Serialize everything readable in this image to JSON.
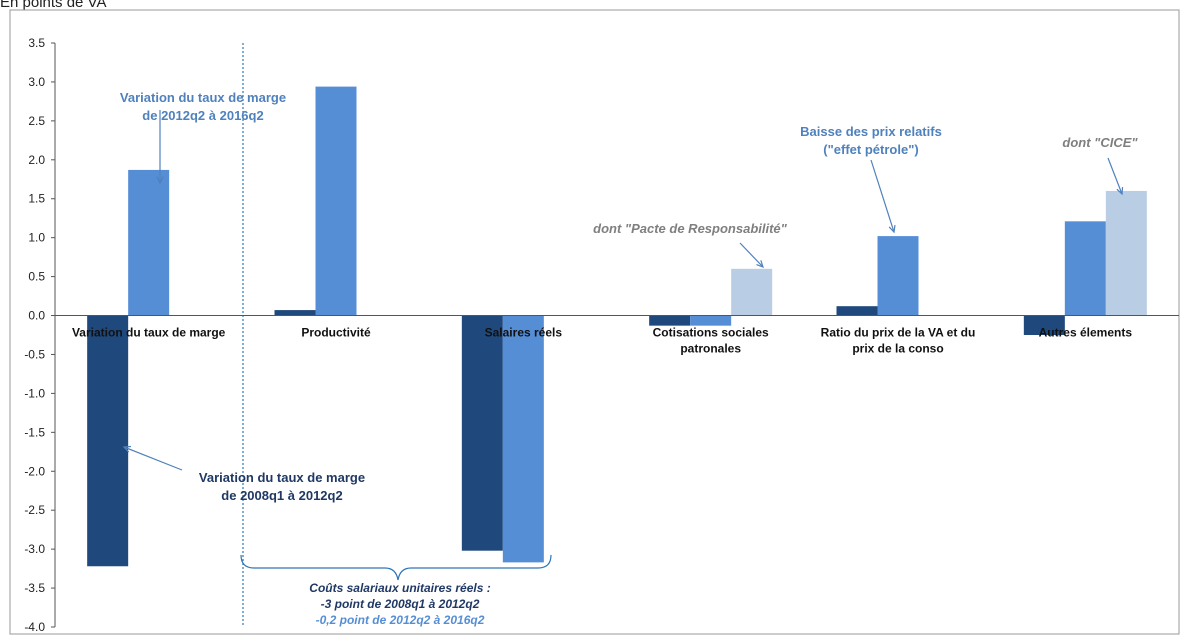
{
  "page_title": "En points de VA",
  "chart_data": {
    "type": "bar",
    "title": "",
    "unit_label": "En points de VA",
    "xlabel": "",
    "ylabel": "",
    "ylim": [
      -4.0,
      3.5
    ],
    "y_ticks": [
      "3.5",
      "3.0",
      "2.5",
      "2.0",
      "1.5",
      "1.0",
      "0.5",
      "0.0",
      "-0.5",
      "-1.0",
      "-1.5",
      "-2.0",
      "-2.5",
      "-3.0",
      "-3.5",
      "-4.0"
    ],
    "grid": false,
    "legend": "none",
    "categories": [
      [
        "Variation du taux de marge"
      ],
      [
        "Productivité"
      ],
      [
        "Salaires réels"
      ],
      [
        "Cotisations sociales",
        "patronales"
      ],
      [
        "Ratio du prix de la VA et du",
        "prix de la conso"
      ],
      [
        "Autres élements"
      ]
    ],
    "series": [
      {
        "color": "#1f497d",
        "values": [
          -3.22,
          0.07,
          -3.02,
          -0.13,
          0.12,
          -0.25
        ]
      },
      {
        "color": "#558ed5",
        "values": [
          1.87,
          2.94,
          -3.17,
          -0.13,
          1.02,
          1.21
        ]
      },
      {
        "color": "#b9cde5",
        "values": [
          null,
          null,
          null,
          0.6,
          null,
          1.6
        ]
      }
    ],
    "annotations": [
      {
        "id": "a1",
        "lines": [
          "Variation du taux de marge",
          "de 2012q2 à 2016q2"
        ],
        "color": "#4f81bd",
        "italic": false
      },
      {
        "id": "a2",
        "lines": [
          "Variation du taux de marge",
          "de 2008q1 à 2012q2"
        ],
        "color": "#1f3864",
        "italic": false
      },
      {
        "id": "a3",
        "lines": [
          "dont \"Pacte de Responsabilité\""
        ],
        "color": "#7f7f7f",
        "italic": true
      },
      {
        "id": "a4",
        "lines": [
          "Baisse des prix relatifs",
          "(\"effet pétrole\")"
        ],
        "color": "#4f81bd",
        "italic": false
      },
      {
        "id": "a5",
        "lines": [
          "dont \"CICE\""
        ],
        "color": "#7f7f7f",
        "italic": true
      }
    ],
    "brace_note": {
      "lines": [
        {
          "text": "Coûts salariaux unitaires réels :",
          "color": "#1f3864"
        },
        {
          "text": "-3 point de 2008q1 à 2012q2",
          "color": "#1f3864"
        },
        {
          "text": "-0,2 point de 2012q2 à 2016q2",
          "color": "#558ed5"
        }
      ]
    },
    "colors": {
      "axis": "#555555",
      "separator": "#2e75b6"
    }
  }
}
